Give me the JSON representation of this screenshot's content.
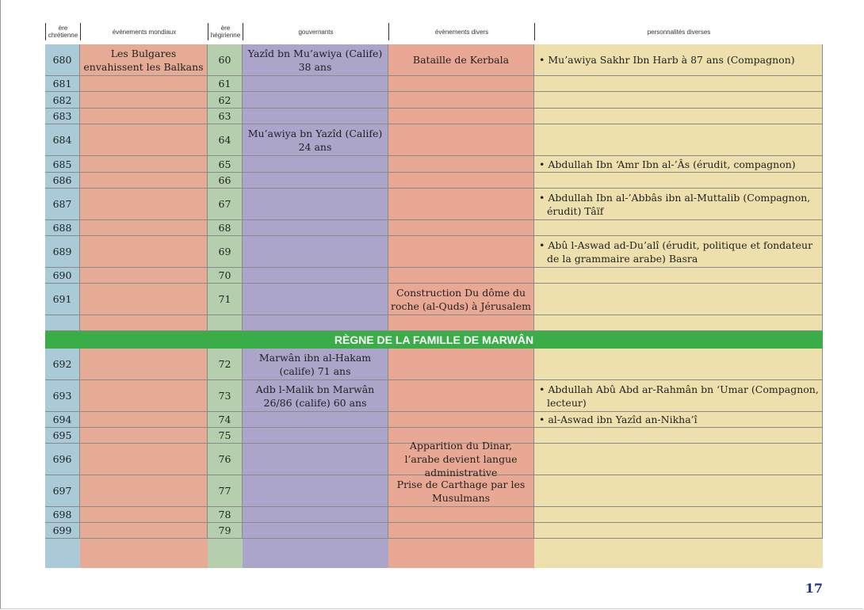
{
  "headers": [
    "ère chrétienne",
    "événements mondiaux",
    "ère hégirienne",
    "gouvernants",
    "évènements divers",
    "personnalités diverses"
  ],
  "colors": {
    "chretienne": "#a9cad6",
    "mondiaux": "#e5ab95",
    "hegirienne": "#b5cfae",
    "gouvernants": "#aaa5c9",
    "divers": "#e8a893",
    "personnalites": "#eee0ad",
    "band": "#3aac48",
    "page_number": "#24338a"
  },
  "rows": [
    {
      "ce": "680",
      "world": "Les Bulgares envahissent les Balkans",
      "ah": "60",
      "rulers": "Yazîd bn Mu’awiya (Calife) 38 ans",
      "events": "Bataille de Kerbala",
      "people": "• Mu’awiya Sakhr Ibn Harb à 87 ans (Compagnon)"
    },
    {
      "ce": "681",
      "ah": "61"
    },
    {
      "ce": "682",
      "ah": "62"
    },
    {
      "ce": "683",
      "ah": "63"
    },
    {
      "ce": "684",
      "ah": "64",
      "rulers": "Mu’awiya bn Yazîd (Calife) 24 ans"
    },
    {
      "ce": "685",
      "ah": "65",
      "people": "• Abdullah Ibn ‘Amr Ibn al-’Âs (érudit, compagnon)"
    },
    {
      "ce": "686",
      "ah": "66"
    },
    {
      "ce": "687",
      "ah": "67",
      "people": "• Abdullah Ibn al-’Abbâs ibn al-Muttalib (Compagnon, érudit) Tâïf"
    },
    {
      "ce": "688",
      "ah": "68"
    },
    {
      "ce": "689",
      "ah": "69",
      "people": "• Abû l-Aswad ad-Du’alî (érudit, politique et fondateur de la grammaire arabe) Basra"
    },
    {
      "ce": "690",
      "ah": "70"
    },
    {
      "ce": "691",
      "ah": "71",
      "events": "Construction Du dôme du roche (al-Quds) à Jérusalem"
    },
    {},
    {
      "ce": "692",
      "ah": "72",
      "rulers": "Marwân ibn al-Hakam (calife) 71 ans"
    },
    {
      "ce": "693",
      "ah": "73",
      "rulers": "Adb l-Malik bn Marwân 26/86 (calife) 60 ans",
      "people": "• Abdullah Abû Abd ar-Rahmân bn ‘Umar (Compagnon, lecteur)"
    },
    {
      "ce": "694",
      "ah": "74",
      "people": "• al-Aswad ibn Yazîd an-Nikha’î"
    },
    {
      "ce": "695",
      "ah": "75"
    },
    {
      "ce": "696",
      "ah": "76",
      "events": "Apparition du Dinar, l’arabe devient langue administrative"
    },
    {
      "ce": "697",
      "ah": "77",
      "events": "Prise de Carthage par les Musulmans"
    },
    {
      "ce": "698",
      "ah": "78"
    },
    {
      "ce": "699",
      "ah": "79"
    }
  ],
  "band_title": "RÈGNE DE LA FAMILLE DE MARWÂN",
  "page_number": "17"
}
